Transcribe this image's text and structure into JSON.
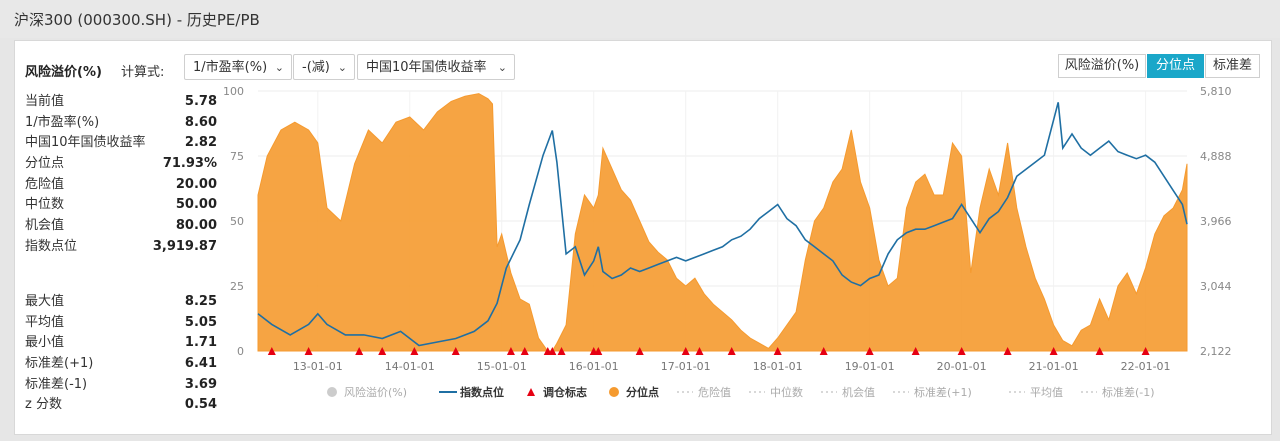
{
  "page": {
    "title": "沪深300 (000300.SH) - 历史PE/PB"
  },
  "toolbar": {
    "main_label": "风险溢价(%)",
    "calc_label": "计算式:",
    "select1": "1/市盈率(%)",
    "select2": "-(减)",
    "select3": "中国10年国债收益率",
    "tabs": [
      "风险溢价(%)",
      "分位点",
      "标准差"
    ],
    "active_tab": "分位点"
  },
  "stats_top": [
    {
      "k": "当前值",
      "v": "5.78"
    },
    {
      "k": "1/市盈率(%)",
      "v": "8.60"
    },
    {
      "k": "中国10年国债收益率",
      "v": "2.82"
    },
    {
      "k": "分位点",
      "v": "71.93%"
    },
    {
      "k": "危险值",
      "v": "20.00"
    },
    {
      "k": "中位数",
      "v": "50.00"
    },
    {
      "k": "机会值",
      "v": "80.00"
    },
    {
      "k": "指数点位",
      "v": "3,919.87"
    }
  ],
  "stats_bottom": [
    {
      "k": "最大值",
      "v": "8.25"
    },
    {
      "k": "平均值",
      "v": "5.05"
    },
    {
      "k": "最小值",
      "v": "1.71"
    },
    {
      "k": "标准差(+1)",
      "v": "6.41"
    },
    {
      "k": "标准差(-1)",
      "v": "3.69"
    },
    {
      "k": "z 分数",
      "v": "0.54"
    }
  ],
  "chart_data": {
    "type": "area",
    "x_ticks": [
      "13-01-01",
      "14-01-01",
      "15-01-01",
      "16-01-01",
      "17-01-01",
      "18-01-01",
      "19-01-01",
      "20-01-01",
      "21-01-01",
      "22-01-01"
    ],
    "x_tick_years": [
      2013,
      2014,
      2015,
      2016,
      2017,
      2018,
      2019,
      2020,
      2021,
      2022
    ],
    "x_range": [
      2012.35,
      2022.45
    ],
    "y_left": {
      "range": [
        0,
        100
      ],
      "ticks": [
        "0",
        "25",
        "50",
        "75",
        "100"
      ]
    },
    "y_right": {
      "range": [
        2122,
        5810
      ],
      "ticks": [
        "2,122",
        "3,044",
        "3,966",
        "4,888",
        "5,810"
      ]
    },
    "colors": {
      "percentile": "#f59a2f",
      "index": "#1f6fa3",
      "marker": "#e60012"
    },
    "legend": [
      {
        "name": "风险溢价(%)",
        "active": false,
        "symbol": "dot",
        "color": "#cccccc"
      },
      {
        "name": "指数点位",
        "active": true,
        "symbol": "line",
        "color": "#1f6fa3"
      },
      {
        "name": "调仓标志",
        "active": true,
        "symbol": "triangle",
        "color": "#e60012"
      },
      {
        "name": "分位点",
        "active": true,
        "symbol": "dot",
        "color": "#f59a2f"
      },
      {
        "name": "危险值",
        "active": false,
        "symbol": "dash",
        "color": "#cccccc"
      },
      {
        "name": "中位数",
        "active": false,
        "symbol": "dash",
        "color": "#cccccc"
      },
      {
        "name": "机会值",
        "active": false,
        "symbol": "dash",
        "color": "#cccccc"
      },
      {
        "name": "标准差(+1)",
        "active": false,
        "symbol": "dash",
        "color": "#cccccc"
      },
      {
        "name": "平均值",
        "active": false,
        "symbol": "dash",
        "color": "#cccccc"
      },
      {
        "name": "标准差(-1)",
        "active": false,
        "symbol": "dash",
        "color": "#cccccc"
      }
    ],
    "series": [
      {
        "name": "分位点",
        "x": [
          2012.35,
          2012.45,
          2012.6,
          2012.75,
          2012.9,
          2013.0,
          2013.1,
          2013.25,
          2013.4,
          2013.55,
          2013.7,
          2013.85,
          2014.0,
          2014.15,
          2014.3,
          2014.45,
          2014.6,
          2014.75,
          2014.85,
          2014.9,
          2014.95,
          2015.0,
          2015.1,
          2015.2,
          2015.3,
          2015.4,
          2015.5,
          2015.55,
          2015.6,
          2015.7,
          2015.8,
          2015.9,
          2016.0,
          2016.05,
          2016.1,
          2016.2,
          2016.3,
          2016.4,
          2016.5,
          2016.6,
          2016.7,
          2016.8,
          2016.9,
          2017.0,
          2017.1,
          2017.2,
          2017.3,
          2017.4,
          2017.5,
          2017.6,
          2017.7,
          2017.8,
          2017.9,
          2018.0,
          2018.1,
          2018.2,
          2018.3,
          2018.4,
          2018.5,
          2018.6,
          2018.7,
          2018.8,
          2018.9,
          2019.0,
          2019.1,
          2019.2,
          2019.3,
          2019.4,
          2019.5,
          2019.6,
          2019.7,
          2019.8,
          2019.9,
          2020.0,
          2020.1,
          2020.2,
          2020.3,
          2020.4,
          2020.5,
          2020.6,
          2020.7,
          2020.8,
          2020.9,
          2021.0,
          2021.1,
          2021.2,
          2021.3,
          2021.4,
          2021.5,
          2021.6,
          2021.7,
          2021.8,
          2021.9,
          2022.0,
          2022.1,
          2022.2,
          2022.3,
          2022.4,
          2022.45
        ],
        "values": [
          60,
          75,
          85,
          88,
          85,
          80,
          55,
          50,
          72,
          85,
          80,
          88,
          90,
          85,
          92,
          96,
          98,
          99,
          97,
          95,
          40,
          45,
          30,
          20,
          18,
          5,
          0,
          0,
          3,
          10,
          45,
          60,
          55,
          60,
          78,
          70,
          62,
          58,
          50,
          42,
          38,
          35,
          28,
          25,
          28,
          22,
          18,
          15,
          12,
          8,
          5,
          3,
          1,
          5,
          10,
          15,
          35,
          50,
          55,
          65,
          70,
          85,
          65,
          55,
          35,
          25,
          28,
          55,
          65,
          68,
          60,
          60,
          80,
          75,
          30,
          55,
          70,
          60,
          80,
          55,
          40,
          28,
          20,
          10,
          4,
          2,
          8,
          10,
          20,
          12,
          25,
          30,
          22,
          32,
          45,
          52,
          55,
          62,
          72
        ]
      },
      {
        "name": "指数点位",
        "x": [
          2012.35,
          2012.5,
          2012.7,
          2012.9,
          2013.0,
          2013.1,
          2013.3,
          2013.5,
          2013.7,
          2013.9,
          2014.1,
          2014.3,
          2014.5,
          2014.7,
          2014.85,
          2014.95,
          2015.05,
          2015.2,
          2015.3,
          2015.45,
          2015.55,
          2015.6,
          2015.7,
          2015.8,
          2015.9,
          2016.0,
          2016.05,
          2016.1,
          2016.2,
          2016.3,
          2016.4,
          2016.5,
          2016.6,
          2016.7,
          2016.8,
          2016.9,
          2017.0,
          2017.1,
          2017.2,
          2017.3,
          2017.4,
          2017.5,
          2017.6,
          2017.7,
          2017.8,
          2017.9,
          2018.0,
          2018.1,
          2018.2,
          2018.3,
          2018.4,
          2018.5,
          2018.6,
          2018.7,
          2018.8,
          2018.9,
          2019.0,
          2019.1,
          2019.2,
          2019.3,
          2019.4,
          2019.5,
          2019.6,
          2019.7,
          2019.8,
          2019.9,
          2020.0,
          2020.1,
          2020.2,
          2020.3,
          2020.4,
          2020.5,
          2020.6,
          2020.7,
          2020.8,
          2020.9,
          2021.0,
          2021.05,
          2021.1,
          2021.2,
          2021.3,
          2021.4,
          2021.5,
          2021.6,
          2021.7,
          2021.8,
          2021.9,
          2022.0,
          2022.1,
          2022.2,
          2022.3,
          2022.4,
          2022.45
        ],
        "values": [
          2650,
          2500,
          2350,
          2500,
          2650,
          2500,
          2350,
          2350,
          2300,
          2400,
          2200,
          2250,
          2300,
          2400,
          2550,
          2800,
          3300,
          3700,
          4200,
          4900,
          5250,
          4800,
          3500,
          3600,
          3200,
          3400,
          3600,
          3250,
          3150,
          3200,
          3300,
          3250,
          3300,
          3350,
          3400,
          3450,
          3400,
          3450,
          3500,
          3550,
          3600,
          3700,
          3750,
          3850,
          4000,
          4100,
          4200,
          4000,
          3900,
          3700,
          3600,
          3500,
          3400,
          3200,
          3100,
          3050,
          3150,
          3200,
          3500,
          3700,
          3800,
          3850,
          3850,
          3900,
          3950,
          4000,
          4200,
          4000,
          3800,
          4000,
          4100,
          4300,
          4600,
          4700,
          4800,
          4900,
          5400,
          5650,
          5000,
          5200,
          5000,
          4900,
          5000,
          5100,
          4950,
          4900,
          4850,
          4900,
          4800,
          4600,
          4400,
          4200,
          3920
        ]
      }
    ],
    "markers_x": [
      2012.5,
      2012.9,
      2013.45,
      2013.7,
      2014.05,
      2014.5,
      2015.1,
      2015.25,
      2015.5,
      2015.55,
      2015.65,
      2016.0,
      2016.05,
      2016.5,
      2017.0,
      2017.15,
      2017.5,
      2018.0,
      2018.5,
      2019.0,
      2019.5,
      2020.0,
      2020.5,
      2021.0,
      2021.5,
      2022.0
    ]
  }
}
